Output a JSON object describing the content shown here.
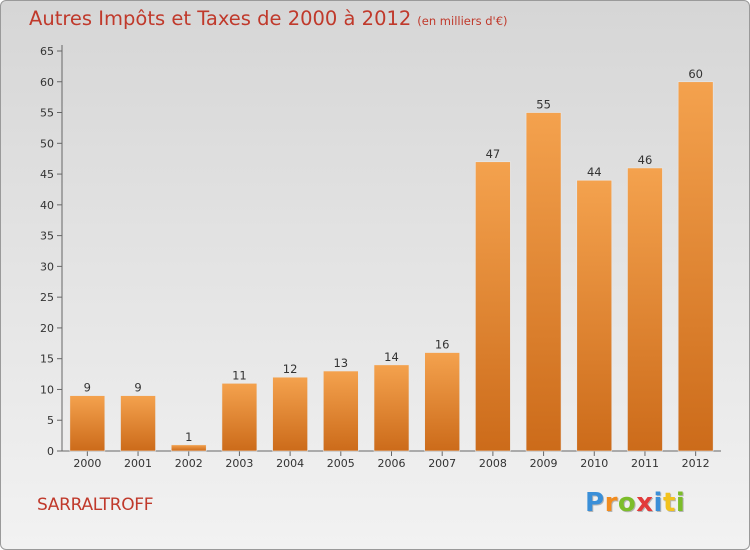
{
  "chart_data": {
    "type": "bar",
    "title": "Autres Impôts et Taxes de 2000 à 2012",
    "subtitle": "(en milliers d'€)",
    "categories": [
      "2000",
      "2001",
      "2002",
      "2003",
      "2004",
      "2005",
      "2006",
      "2007",
      "2008",
      "2009",
      "2010",
      "2011",
      "2012"
    ],
    "values": [
      9,
      9,
      1,
      11,
      12,
      13,
      14,
      16,
      47,
      55,
      44,
      46,
      60
    ],
    "ylim": [
      0,
      65
    ],
    "yticks": [
      0,
      5,
      10,
      15,
      20,
      25,
      30,
      35,
      40,
      45,
      50,
      55,
      60,
      65
    ],
    "grid": false,
    "bar_color_top": "#f4a24e",
    "bar_color_bottom": "#cc6b1a",
    "title_color": "#c0392b"
  },
  "city": "SARRALTROFF",
  "logo": {
    "letters": [
      "P",
      "r",
      "o",
      "x",
      "i",
      "t",
      "i"
    ],
    "colors": [
      "#3a8fd8",
      "#f28c1e",
      "#7cbd2a",
      "#e23b3b",
      "#3a8fd8",
      "#f2c21e",
      "#7cbd2a"
    ]
  }
}
